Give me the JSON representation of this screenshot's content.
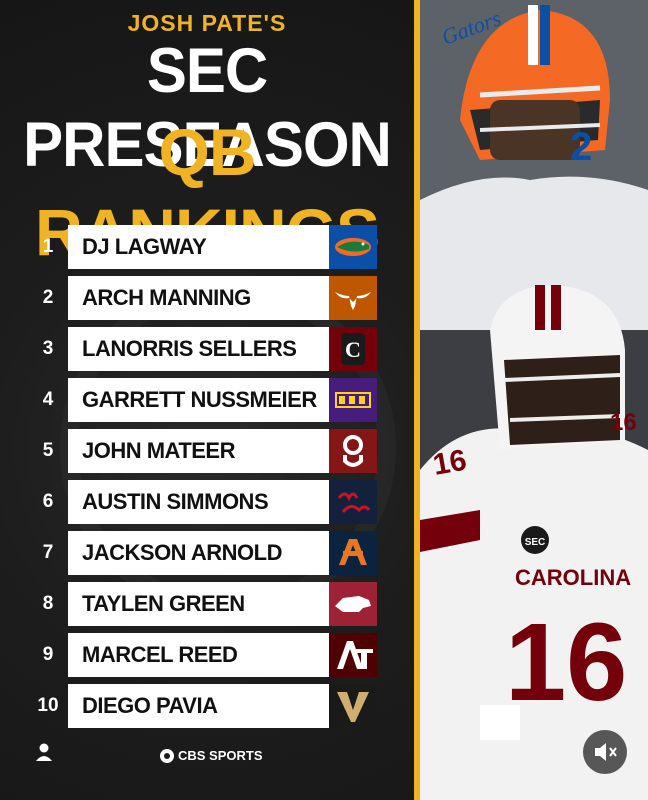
{
  "header": {
    "line1": "JOSH PATE'S",
    "line2": "SEC PRESEASON",
    "line3": "QB RANKINGS"
  },
  "rankings": [
    {
      "rank": "1",
      "name": "DJ LAGWAY",
      "team_icon": "florida-gators-logo",
      "team_color": "#0b4fa6"
    },
    {
      "rank": "2",
      "name": "ARCH MANNING",
      "team_icon": "texas-longhorns-logo",
      "team_color": "#bf5700"
    },
    {
      "rank": "3",
      "name": "LANORRIS SELLERS",
      "team_icon": "south-carolina-gamecocks-logo",
      "team_color": "#73000a"
    },
    {
      "rank": "4",
      "name": "GARRETT NUSSMEIER",
      "team_icon": "lsu-tigers-logo",
      "team_color": "#461d7c"
    },
    {
      "rank": "5",
      "name": "JOHN MATEER",
      "team_icon": "oklahoma-sooners-logo",
      "team_color": "#841617"
    },
    {
      "rank": "6",
      "name": "AUSTIN SIMMONS",
      "team_icon": "ole-miss-rebels-logo",
      "team_color": "#14213d"
    },
    {
      "rank": "7",
      "name": "JACKSON ARNOLD",
      "team_icon": "auburn-tigers-logo",
      "team_color": "#0c2340"
    },
    {
      "rank": "8",
      "name": "TAYLEN GREEN",
      "team_icon": "arkansas-razorbacks-logo",
      "team_color": "#9d2235"
    },
    {
      "rank": "9",
      "name": "MARCEL REED",
      "team_icon": "texas-am-aggies-logo",
      "team_color": "#500000"
    },
    {
      "rank": "10",
      "name": "DIEGO PAVIA",
      "team_icon": "vanderbilt-commodores-logo",
      "team_color": "#1a1a1a"
    }
  ],
  "footer": {
    "brand": "CBS SPORTS",
    "user_icon": "user-icon",
    "mute_icon": "muted-speaker-icon"
  },
  "colors": {
    "accent": "#f0b323",
    "background": "#1c1c1c"
  }
}
